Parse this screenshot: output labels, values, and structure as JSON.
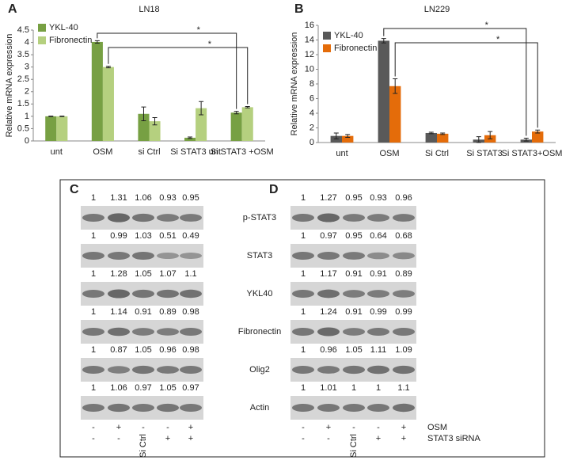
{
  "chart_data": [
    {
      "type": "bar",
      "panel": "A",
      "title": "LN18",
      "y_label": "Relative  mRNA expression",
      "categories": [
        "unt",
        "OSM",
        "si Ctrl",
        "Si STAT3 unt",
        "Si STAT3 +OSM"
      ],
      "series": [
        {
          "name": "YKL-40",
          "color": "#77a043",
          "values": [
            1,
            4.02,
            1.1,
            0.13,
            1.15
          ],
          "errors": [
            0.01,
            0.05,
            0.28,
            0.03,
            0.05
          ]
        },
        {
          "name": "Fibronectin",
          "color": "#b5d07f",
          "values": [
            1,
            3,
            0.8,
            1.33,
            1.37
          ],
          "errors": [
            0.01,
            0.03,
            0.15,
            0.27,
            0.03
          ]
        }
      ],
      "ylim": [
        0,
        4.5
      ],
      "yticks": [
        0,
        0.5,
        1,
        1.5,
        2,
        2.5,
        3,
        3.5,
        4,
        4.5
      ],
      "legend": "top-left",
      "annotations": [
        "*",
        "*"
      ]
    },
    {
      "type": "bar",
      "panel": "B",
      "title": "LN229",
      "y_label": "Relative  mRNA expression",
      "categories": [
        "unt",
        "OSM",
        "Si Ctrl",
        "Si STAT3",
        "Si STAT3+OSM"
      ],
      "series": [
        {
          "name": "YKL-40",
          "color": "#595959",
          "values": [
            0.9,
            13.9,
            1.3,
            0.4,
            0.4
          ],
          "errors": [
            0.4,
            0.3,
            0.1,
            0.4,
            0.2
          ]
        },
        {
          "name": "Fibronectin",
          "color": "#e46c0a",
          "values": [
            0.9,
            7.7,
            1.2,
            1,
            1.5
          ],
          "errors": [
            0.2,
            1,
            0.1,
            0.5,
            0.2
          ]
        }
      ],
      "ylim": [
        0,
        16
      ],
      "yticks": [
        0,
        2,
        4,
        6,
        8,
        10,
        12,
        14,
        16
      ],
      "legend": "top-left",
      "annotations": [
        "*",
        "*"
      ]
    }
  ],
  "blots": {
    "row_labels": [
      "p-STAT3",
      "STAT3",
      "YKL40",
      "Fibronectin",
      "Olig2",
      "Actin"
    ],
    "panels": [
      {
        "label": "C",
        "rows": [
          [
            1,
            1.31,
            1.06,
            0.93,
            0.95
          ],
          [
            1,
            0.99,
            1.03,
            0.51,
            0.49
          ],
          [
            1,
            1.28,
            1.05,
            1.07,
            1.1
          ],
          [
            1,
            1.14,
            0.91,
            0.89,
            0.98
          ],
          [
            1,
            0.87,
            1.05,
            0.96,
            0.98
          ],
          [
            1,
            1.06,
            0.97,
            1.05,
            0.97
          ]
        ]
      },
      {
        "label": "D",
        "rows": [
          [
            1,
            1.27,
            0.95,
            0.93,
            0.96
          ],
          [
            1,
            0.97,
            0.95,
            0.64,
            0.68
          ],
          [
            1,
            1.17,
            0.91,
            0.91,
            0.89
          ],
          [
            1,
            1.24,
            0.91,
            0.99,
            0.99
          ],
          [
            1,
            0.96,
            1.05,
            1.11,
            1.09
          ],
          [
            1,
            1.01,
            1,
            1,
            1.1
          ]
        ]
      }
    ],
    "treatments": [
      {
        "label": "OSM",
        "marks": [
          "-",
          "+",
          "-",
          "-",
          "+"
        ]
      },
      {
        "label": "STAT3 siRNA",
        "marks": [
          "-",
          "-",
          "Si Ctrl",
          "+",
          "+"
        ]
      }
    ]
  }
}
